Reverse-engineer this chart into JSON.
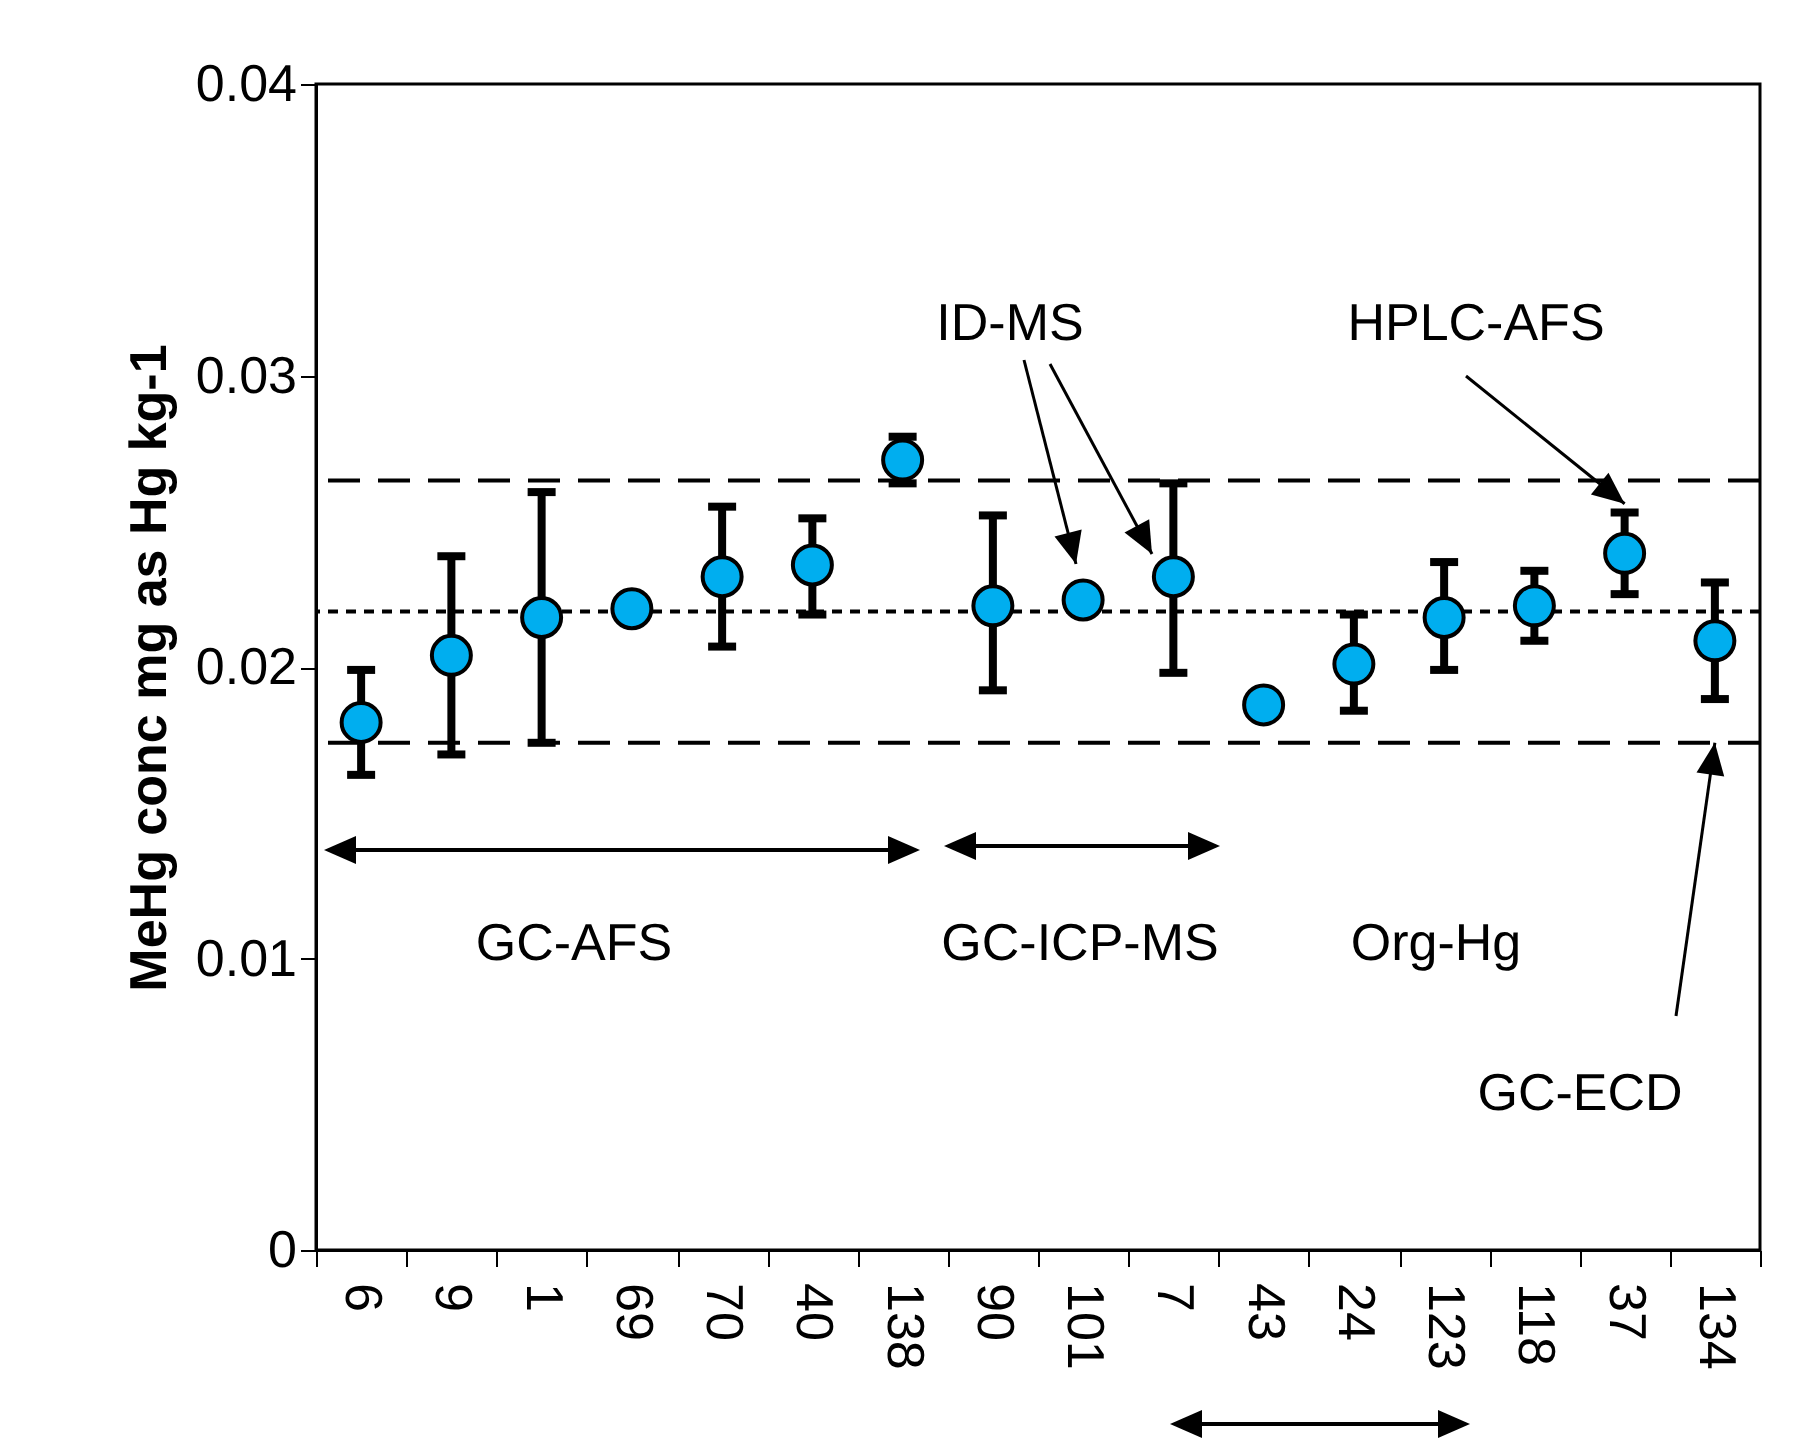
{
  "chart_data": {
    "type": "scatter",
    "ylabel": "MeHg conc mg as Hg  kg-1",
    "categories": [
      "6",
      "9",
      "1",
      "69",
      "70",
      "40",
      "138",
      "90",
      "101",
      "7",
      "43",
      "24",
      "123",
      "118",
      "37",
      "134"
    ],
    "values": [
      0.0181,
      0.0204,
      0.0217,
      0.022,
      0.0231,
      0.0235,
      0.0271,
      0.0221,
      0.0223,
      0.0231,
      0.0187,
      0.0201,
      0.0217,
      0.0221,
      0.0239,
      0.0209
    ],
    "errors": [
      [
        0.0163,
        0.0199
      ],
      [
        0.017,
        0.0238
      ],
      [
        0.0174,
        0.026
      ],
      null,
      [
        0.0207,
        0.0255
      ],
      [
        0.0218,
        0.0251
      ],
      [
        0.0263,
        0.0279
      ],
      [
        0.0192,
        0.0252
      ],
      null,
      [
        0.0198,
        0.0263
      ],
      null,
      [
        0.0185,
        0.0218
      ],
      [
        0.0199,
        0.0236
      ],
      [
        0.0209,
        0.0233
      ],
      [
        0.0225,
        0.0253
      ],
      [
        0.0189,
        0.0229
      ]
    ],
    "color": "#00aeef",
    "marker": "circle",
    "ylim": [
      0,
      0.04
    ],
    "yticks": [
      0,
      0.01,
      0.02,
      0.03,
      0.04
    ],
    "ref_lines": [
      {
        "axis": "y",
        "value": 0.0264,
        "line_style": "dashed"
      },
      {
        "axis": "y",
        "value": 0.0219,
        "line_style": "dotted"
      },
      {
        "axis": "y",
        "value": 0.0174,
        "line_style": "dashed"
      }
    ],
    "annotations": [
      "ID-MS",
      {
        "text": "HPLC-AFS",
        "x": "37",
        "y": 0.0256
      },
      "GC-AFS",
      "GC-ICP-MS",
      "Org-Hg",
      {
        "text": "GC-ECD",
        "x": "134",
        "y": 0.0174
      }
    ]
  }
}
